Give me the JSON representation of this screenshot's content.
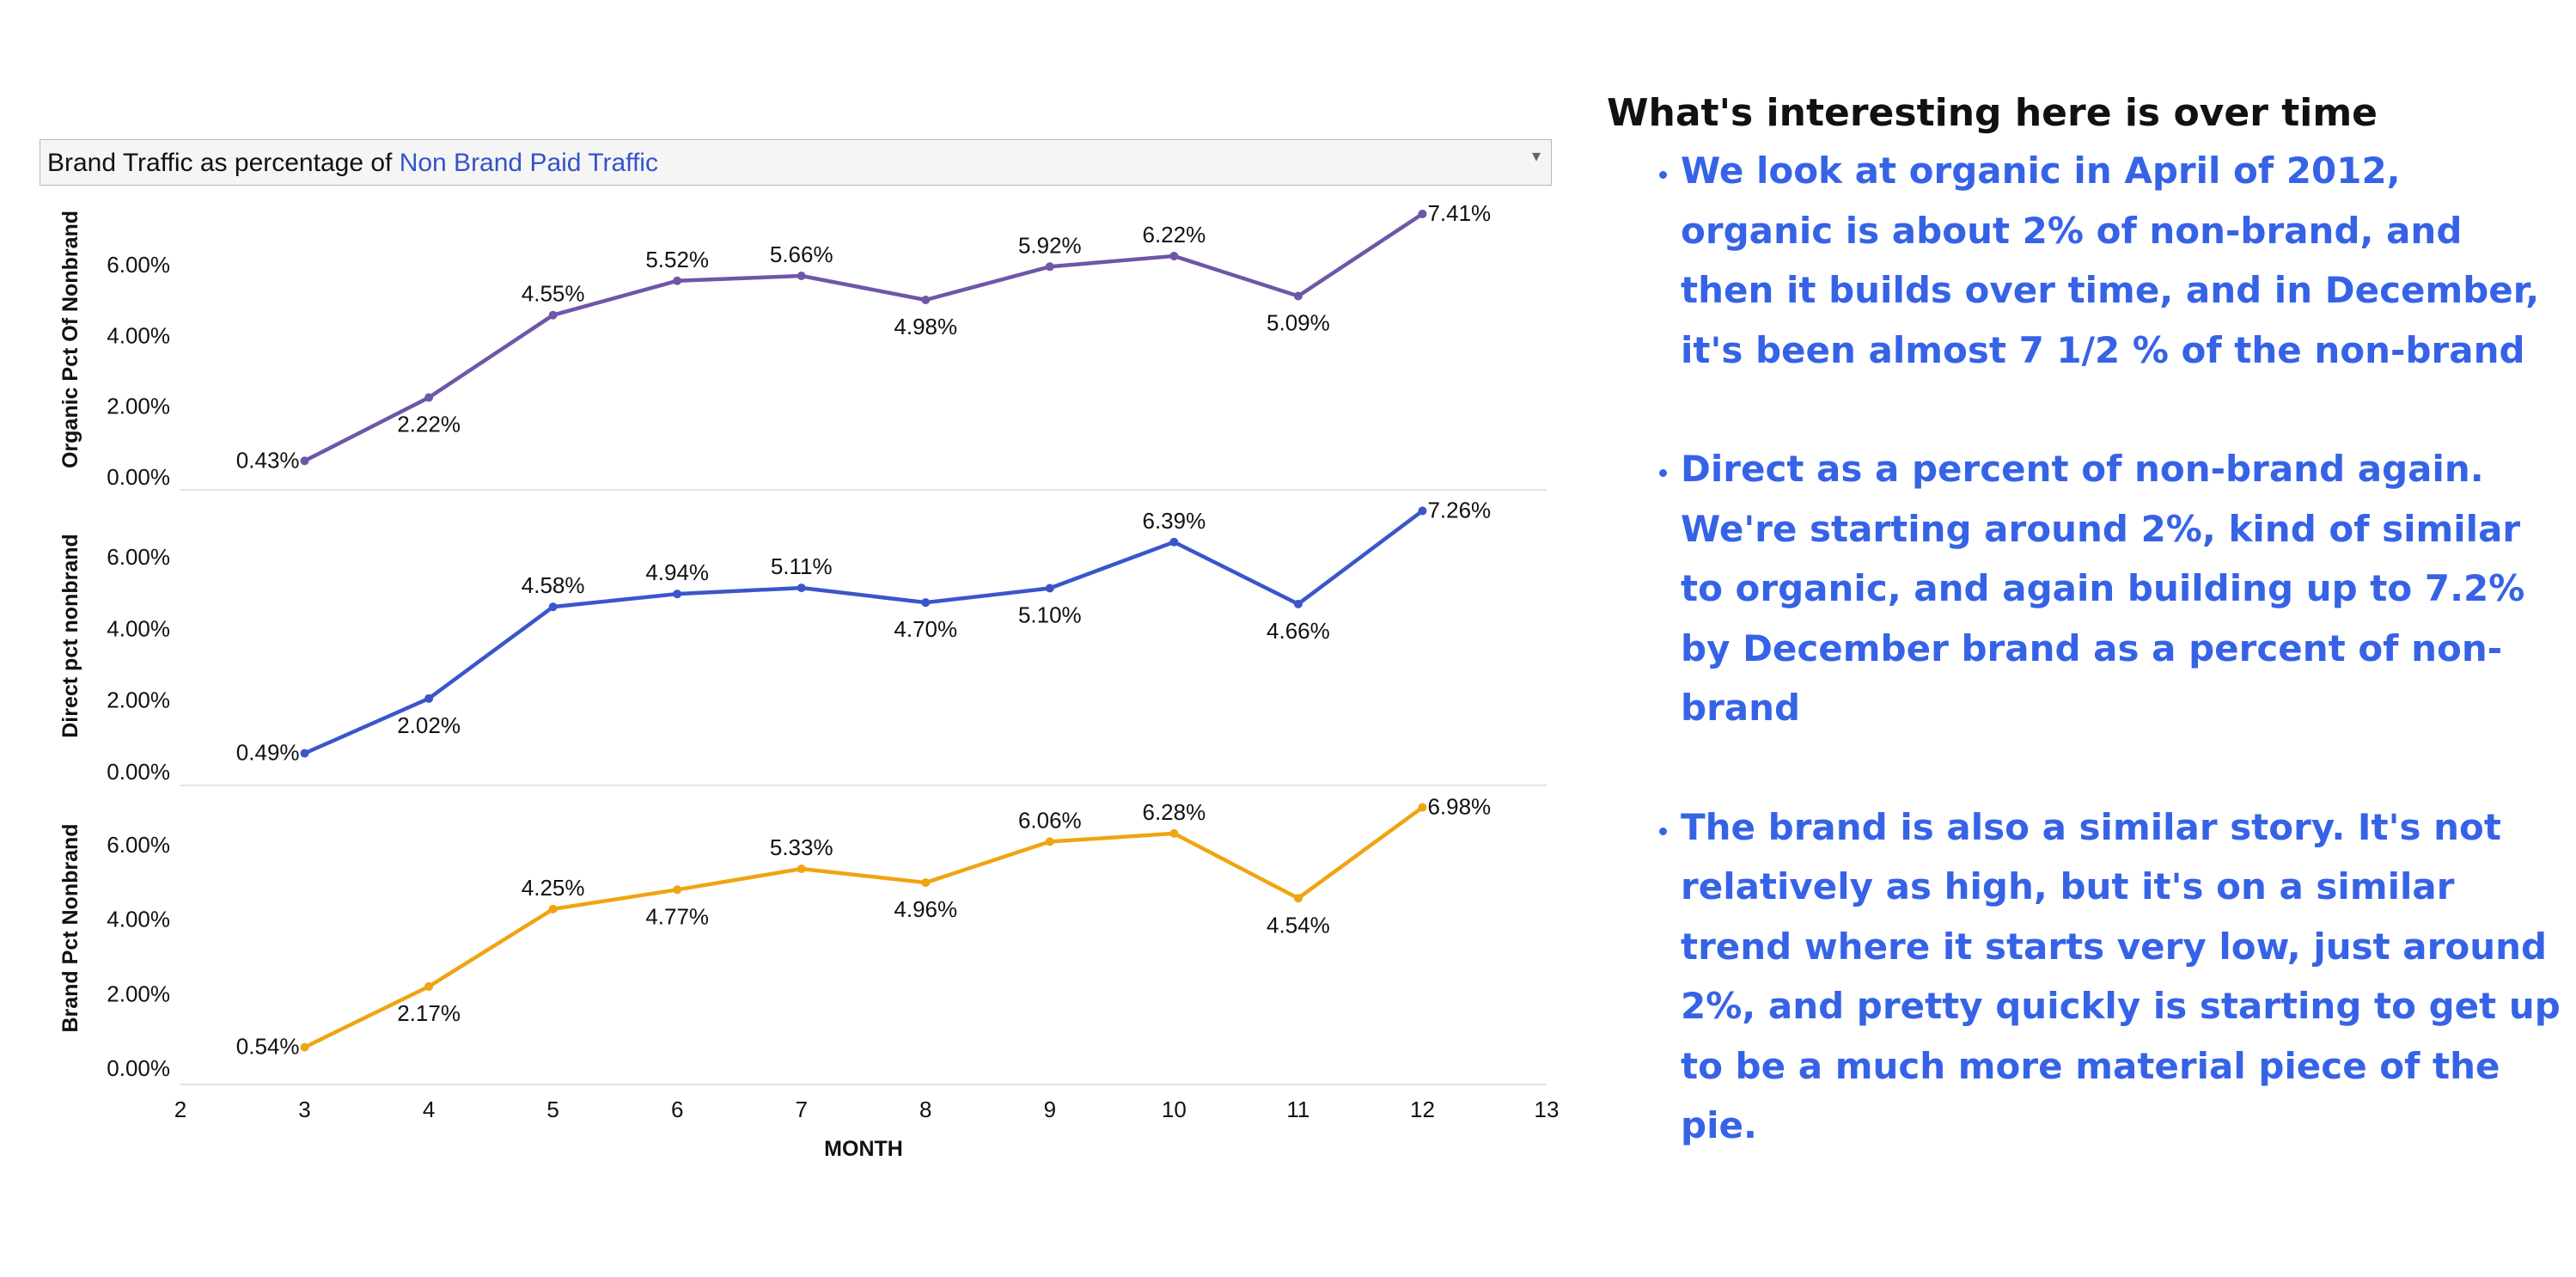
{
  "filter": {
    "label_prefix": "Brand Traffic as percentage of ",
    "label_highlight": "Non Brand Paid Traffic",
    "caret_icon": "▾"
  },
  "chart_data": {
    "type": "line",
    "xlabel": "MONTH",
    "x": [
      3,
      4,
      5,
      6,
      7,
      8,
      9,
      10,
      11,
      12
    ],
    "xlim": [
      2,
      13
    ],
    "xticks": [
      "2",
      "3",
      "4",
      "5",
      "6",
      "7",
      "8",
      "9",
      "10",
      "11",
      "12",
      "13"
    ],
    "ylim": [
      0,
      7.41
    ],
    "yticks": [
      "0.00%",
      "2.00%",
      "4.00%",
      "6.00%"
    ],
    "series": [
      {
        "name": "Organic Pct Of Nonbrand",
        "color": "#6e56a8",
        "values": [
          0.43,
          2.22,
          4.55,
          5.52,
          5.66,
          4.98,
          5.92,
          6.22,
          5.09,
          7.41
        ],
        "labels": [
          "0.43%",
          "2.22%",
          "4.55%",
          "5.52%",
          "5.66%",
          "4.98%",
          "5.92%",
          "6.22%",
          "5.09%",
          "7.41%"
        ]
      },
      {
        "name": "Direct pct nonbrand",
        "color": "#3a55cc",
        "values": [
          0.49,
          2.02,
          4.58,
          4.94,
          5.11,
          4.7,
          5.1,
          6.39,
          4.66,
          7.26
        ],
        "labels": [
          "0.49%",
          "2.02%",
          "4.58%",
          "4.94%",
          "5.11%",
          "4.70%",
          "5.10%",
          "6.39%",
          "4.66%",
          "7.26%"
        ]
      },
      {
        "name": "Brand Pct Nonbrand",
        "color": "#f0a412",
        "values": [
          0.54,
          2.17,
          4.25,
          4.77,
          5.33,
          4.96,
          6.06,
          6.28,
          4.54,
          6.98
        ],
        "labels": [
          "0.54%",
          "2.17%",
          "4.25%",
          "4.77%",
          "5.33%",
          "4.96%",
          "6.06%",
          "6.28%",
          "4.54%",
          "6.98%"
        ]
      }
    ]
  },
  "notes": {
    "heading": "What's interesting here is over time",
    "bullets": [
      "We look at organic in April of 2012, organic is about 2% of non-brand, and then it builds over time, and in December, it's been almost 7 1/2 % of the non-brand",
      "Direct as a percent of non-brand again. We're starting around 2%, kind of similar to organic, and again building up to 7.2% by December brand as a percent of non-brand",
      "The brand is also a similar story. It's not relatively as high, but it's on a similar trend where it starts very low, just around 2%, and pretty quickly is starting to get up to be a much more material piece of the pie."
    ]
  }
}
